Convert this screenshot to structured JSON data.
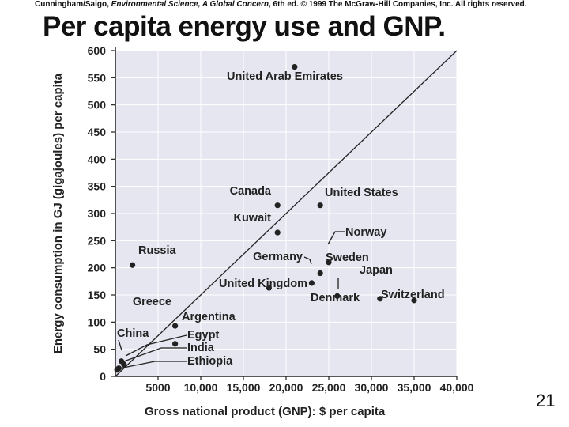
{
  "header": {
    "credit_pre": "Cunningham/Saigo, ",
    "credit_book": "Environmental Science, A Global Concern",
    "credit_post": ", 6th ed. © 1999 The McGraw-Hill Companies, Inc. All rights reserved.",
    "title": "Per capita energy use and GNP."
  },
  "page_number": "21",
  "colors": {
    "plot_bg": "#e5e6f0",
    "ink": "#222222"
  },
  "chart_data": {
    "type": "scatter",
    "title": "Per capita energy use and GNP.",
    "xlabel": "Gross national product (GNP): $ per capita",
    "ylabel": "Energy consumption in GJ (gigajoules) per capita",
    "xlim": [
      0,
      40000
    ],
    "ylim": [
      0,
      600
    ],
    "x_ticks": [
      {
        "value": 5000,
        "label": "5000"
      },
      {
        "value": 10000,
        "label": "10,000"
      },
      {
        "value": 15000,
        "label": "15,000"
      },
      {
        "value": 20000,
        "label": "20,000"
      },
      {
        "value": 25000,
        "label": "25,000"
      },
      {
        "value": 30000,
        "label": "30,000"
      },
      {
        "value": 35000,
        "label": "35,000"
      },
      {
        "value": 40000,
        "label": "40,000"
      }
    ],
    "y_ticks": [
      {
        "value": 0,
        "label": "0"
      },
      {
        "value": 50,
        "label": "50"
      },
      {
        "value": 100,
        "label": "100"
      },
      {
        "value": 150,
        "label": "150"
      },
      {
        "value": 200,
        "label": "200"
      },
      {
        "value": 250,
        "label": "250"
      },
      {
        "value": 300,
        "label": "300"
      },
      {
        "value": 350,
        "label": "350"
      },
      {
        "value": 400,
        "label": "400"
      },
      {
        "value": 450,
        "label": "450"
      },
      {
        "value": 500,
        "label": "500"
      },
      {
        "value": 550,
        "label": "550"
      },
      {
        "value": 600,
        "label": "600"
      }
    ],
    "trend_line": {
      "from": [
        0,
        0
      ],
      "to": [
        40000,
        600
      ]
    },
    "points": [
      {
        "name": "United Arab Emirates",
        "x": 21000,
        "y": 570
      },
      {
        "name": "Canada",
        "x": 19000,
        "y": 315
      },
      {
        "name": "United States",
        "x": 24000,
        "y": 315
      },
      {
        "name": "Kuwait",
        "x": 19000,
        "y": 265
      },
      {
        "name": "Russia",
        "x": 2000,
        "y": 205
      },
      {
        "name": "Norway",
        "x": 25000,
        "y": 210
      },
      {
        "name": "Germany",
        "x": 23000,
        "y": 172
      },
      {
        "name": "Sweden",
        "x": 24000,
        "y": 190
      },
      {
        "name": "United Kingdom",
        "x": 18000,
        "y": 163
      },
      {
        "name": "Denmark",
        "x": 26000,
        "y": 148
      },
      {
        "name": "Japan",
        "x": 31000,
        "y": 143
      },
      {
        "name": "Switzerland",
        "x": 35000,
        "y": 140
      },
      {
        "name": "Greece",
        "x": 7000,
        "y": 93
      },
      {
        "name": "Argentina",
        "x": 7000,
        "y": 60
      },
      {
        "name": "China",
        "x": 700,
        "y": 28
      },
      {
        "name": "Egypt",
        "x": 1000,
        "y": 22
      },
      {
        "name": "India",
        "x": 400,
        "y": 15
      },
      {
        "name": "Ethiopia",
        "x": 200,
        "y": 12
      }
    ]
  }
}
